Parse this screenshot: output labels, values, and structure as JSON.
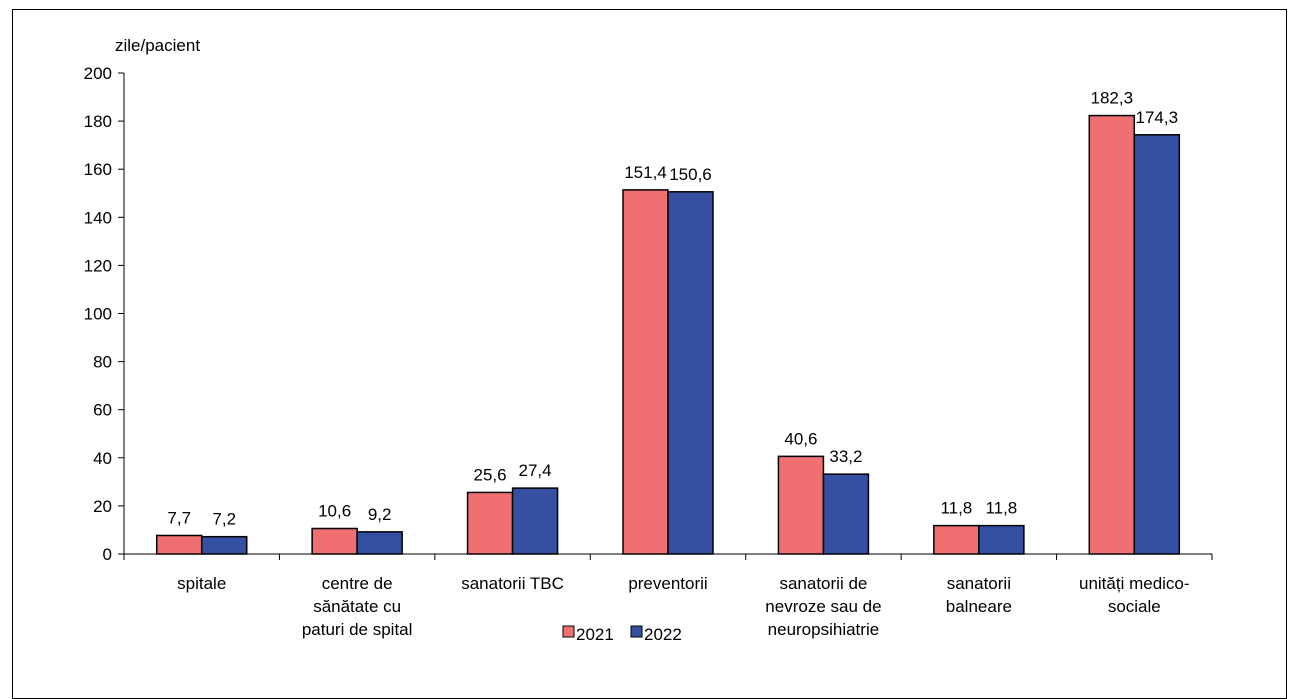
{
  "figure_caption_fragment": "",
  "chart_data": {
    "type": "bar",
    "unit_label": "zile/pacient",
    "ylim": [
      0,
      200
    ],
    "y_ticks": [
      "0",
      "20",
      "40",
      "60",
      "80",
      "100",
      "120",
      "140",
      "160",
      "180",
      "200"
    ],
    "y_tick_values": [
      0,
      20,
      40,
      60,
      80,
      100,
      120,
      140,
      160,
      180,
      200
    ],
    "categories": [
      [
        "spitale"
      ],
      [
        "centre de",
        "sănătate cu",
        "paturi de spital"
      ],
      [
        "sanatorii TBC"
      ],
      [
        "preventorii"
      ],
      [
        "sanatorii de",
        "nevroze sau de",
        "neuropsihiatrie"
      ],
      [
        "sanatorii",
        "balneare"
      ],
      [
        "unități medico-",
        "sociale"
      ]
    ],
    "series": [
      {
        "name": "2021",
        "color": "#F07072",
        "values": [
          7.7,
          10.6,
          25.6,
          151.4,
          40.6,
          11.8,
          182.3
        ],
        "labels": [
          "7,7",
          "10,6",
          "25,6",
          "151,4",
          "40,6",
          "11,8",
          "182,3"
        ]
      },
      {
        "name": "2022",
        "color": "#3550A3",
        "values": [
          7.2,
          9.2,
          27.4,
          150.6,
          33.2,
          11.8,
          174.3
        ],
        "labels": [
          "7,2",
          "9,2",
          "27,4",
          "150,6",
          "33,2",
          "11,8",
          "174,3"
        ]
      }
    ],
    "legend_position": "bottom-center",
    "grid": false
  }
}
